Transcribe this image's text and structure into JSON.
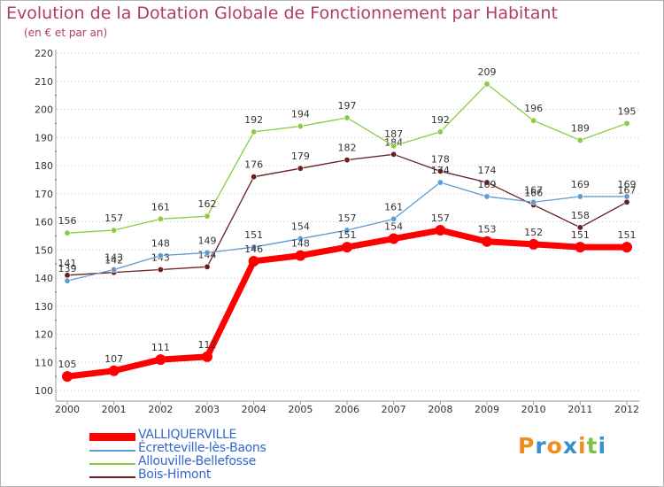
{
  "chart_data": {
    "type": "line",
    "title": "Evolution de la Dotation Globale de Fonctionnement par Habitant",
    "subtitle": "(en € et par an)",
    "xlabel": "",
    "ylabel": "",
    "ylim": [
      100,
      220
    ],
    "yticks": [
      100,
      110,
      120,
      130,
      140,
      150,
      160,
      170,
      180,
      190,
      200,
      210,
      220
    ],
    "grid": "horizontal-dotted",
    "legend_position": "bottom-left",
    "x": [
      "2000",
      "2001",
      "2002",
      "2003",
      "2004",
      "2005",
      "2006",
      "2007",
      "2008",
      "2009",
      "2010",
      "2011",
      "2012"
    ],
    "series": [
      {
        "name": "Bois-Himont",
        "color": "#6b1c1c",
        "values": [
          141,
          142,
          143,
          144,
          176,
          179,
          182,
          184,
          178,
          174,
          166,
          158,
          167
        ],
        "labels": [
          "141",
          "142",
          "143",
          "144",
          "176",
          "179",
          "182",
          "184",
          "178",
          "174",
          "166",
          "158",
          "167"
        ]
      },
      {
        "name": "Allouville-Bellefosse",
        "color": "#88cc44",
        "values": [
          156,
          157,
          161,
          162,
          192,
          194,
          197,
          187,
          192,
          209,
          196,
          189,
          195
        ],
        "labels": [
          "156",
          "157",
          "161",
          "162",
          "192",
          "194",
          "197",
          "187",
          "192",
          "209",
          "196",
          "189",
          "195"
        ]
      },
      {
        "name": "Écretteville-lès-Baons",
        "color": "#5d9bd1",
        "values": [
          139,
          143,
          148,
          149,
          151,
          154,
          157,
          161,
          174,
          169,
          167,
          169,
          169
        ],
        "labels": [
          "139",
          "143",
          "148",
          "149",
          "151",
          "154",
          "157",
          "161",
          "174",
          "169",
          "167",
          "169",
          "169"
        ]
      },
      {
        "name": "VALLIQUERVILLE",
        "color": "#ff0000",
        "values": [
          105,
          107,
          111,
          112,
          146,
          148,
          151,
          154,
          157,
          153,
          152,
          151,
          151
        ],
        "labels": [
          "105",
          "107",
          "111",
          "112",
          "146",
          "148",
          "151",
          "154",
          "157",
          "153",
          "152",
          "151",
          "151"
        ]
      }
    ],
    "legend": [
      "VALLIQUERVILLE",
      "Écretteville-lès-Baons",
      "Allouville-Bellefosse",
      "Bois-Himont"
    ]
  },
  "logo": {
    "text": "Proxiti",
    "colors": [
      "#f28c1e",
      "#3a8fd0",
      "#f28c1e",
      "#3a8fd0",
      "#f28c1e",
      "#7cc242",
      "#3a8fd0"
    ]
  }
}
